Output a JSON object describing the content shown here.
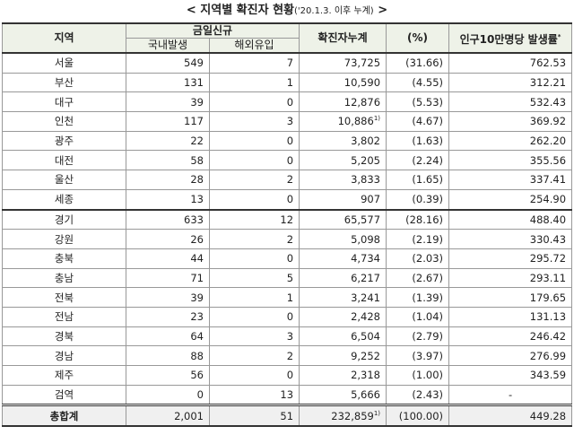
{
  "title": {
    "left": "<",
    "main": "지역별 확진자 현황",
    "sub": "('20.1.3. 이후 누계)",
    "right": ">"
  },
  "table": {
    "header": {
      "region": "지역",
      "new": "금일신규",
      "domestic": "국내발생",
      "overseas": "해외유입",
      "total": "확진자누계",
      "pct": "(%)",
      "rate": "인구10만명당 발생률",
      "rate_note": "*"
    },
    "rows": [
      {
        "region": "서울",
        "domestic": "549",
        "overseas": "7",
        "total": "73,725",
        "pct": "(31.66)",
        "rate": "762.53"
      },
      {
        "region": "부산",
        "domestic": "131",
        "overseas": "1",
        "total": "10,590",
        "pct": "(4.55)",
        "rate": "312.21"
      },
      {
        "region": "대구",
        "domestic": "39",
        "overseas": "0",
        "total": "12,876",
        "pct": "(5.53)",
        "rate": "532.43"
      },
      {
        "region": "인천",
        "domestic": "117",
        "overseas": "3",
        "total": "10,886",
        "total_note": "1)",
        "pct": "(4.67)",
        "rate": "369.92"
      },
      {
        "region": "광주",
        "domestic": "22",
        "overseas": "0",
        "total": "3,802",
        "pct": "(1.63)",
        "rate": "262.20"
      },
      {
        "region": "대전",
        "domestic": "58",
        "overseas": "0",
        "total": "5,205",
        "pct": "(2.24)",
        "rate": "355.56"
      },
      {
        "region": "울산",
        "domestic": "28",
        "overseas": "2",
        "total": "3,833",
        "pct": "(1.65)",
        "rate": "337.41"
      },
      {
        "region": "세종",
        "domestic": "13",
        "overseas": "0",
        "total": "907",
        "pct": "(0.39)",
        "rate": "254.90"
      },
      {
        "region": "경기",
        "domestic": "633",
        "overseas": "12",
        "total": "65,577",
        "pct": "(28.16)",
        "rate": "488.40"
      },
      {
        "region": "강원",
        "domestic": "26",
        "overseas": "2",
        "total": "5,098",
        "pct": "(2.19)",
        "rate": "330.43"
      },
      {
        "region": "충북",
        "domestic": "44",
        "overseas": "0",
        "total": "4,734",
        "pct": "(2.03)",
        "rate": "295.72"
      },
      {
        "region": "충남",
        "domestic": "71",
        "overseas": "5",
        "total": "6,217",
        "pct": "(2.67)",
        "rate": "293.11"
      },
      {
        "region": "전북",
        "domestic": "39",
        "overseas": "1",
        "total": "3,241",
        "pct": "(1.39)",
        "rate": "179.65"
      },
      {
        "region": "전남",
        "domestic": "23",
        "overseas": "0",
        "total": "2,428",
        "pct": "(1.04)",
        "rate": "131.13"
      },
      {
        "region": "경북",
        "domestic": "64",
        "overseas": "3",
        "total": "6,504",
        "pct": "(2.79)",
        "rate": "246.42"
      },
      {
        "region": "경남",
        "domestic": "88",
        "overseas": "2",
        "total": "9,252",
        "pct": "(3.97)",
        "rate": "276.99"
      },
      {
        "region": "제주",
        "domestic": "56",
        "overseas": "0",
        "total": "2,318",
        "pct": "(1.00)",
        "rate": "343.59"
      },
      {
        "region": "검역",
        "domestic": "0",
        "overseas": "13",
        "total": "5,666",
        "pct": "(2.43)",
        "rate": "-"
      },
      {
        "region": "총합계",
        "domestic": "2,001",
        "overseas": "51",
        "total": "232,859",
        "total_note": "1)",
        "pct": "(100.00)",
        "rate": "449.28"
      }
    ]
  }
}
